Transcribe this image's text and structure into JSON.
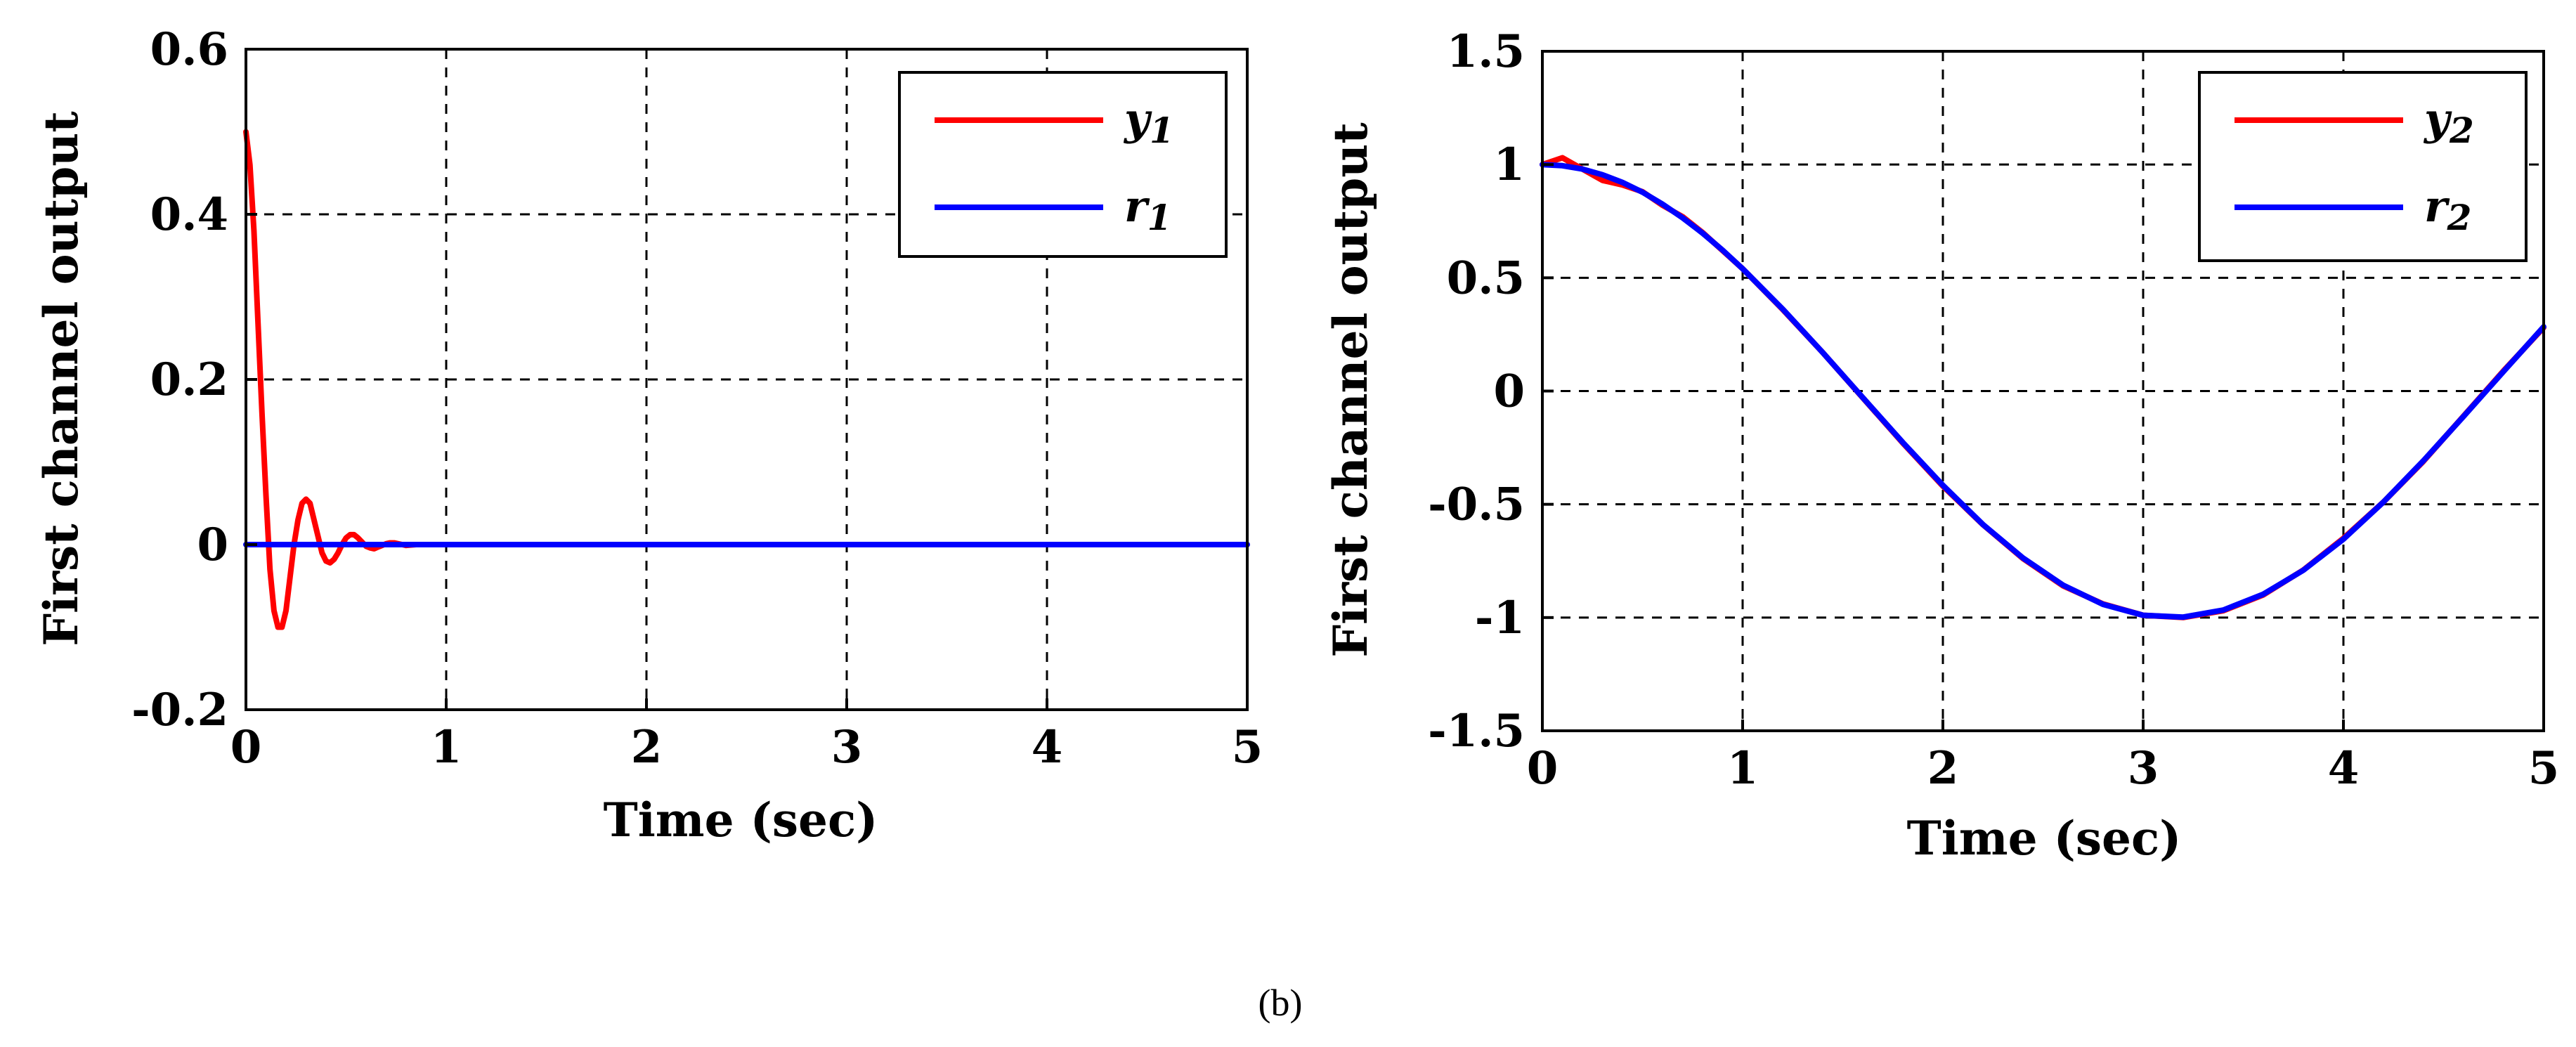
{
  "caption": "(b)",
  "chart_data": [
    {
      "type": "line",
      "xlabel": "Time (sec)",
      "ylabel": "First channel output",
      "xlim": [
        0,
        5
      ],
      "ylim": [
        -0.2,
        0.6
      ],
      "xticks": [
        0,
        1,
        2,
        3,
        4,
        5
      ],
      "yticks": [
        -0.2,
        0,
        0.2,
        0.4,
        0.6
      ],
      "xtick_labels": [
        "0",
        "1",
        "2",
        "3",
        "4",
        "5"
      ],
      "ytick_labels": [
        "-0.2",
        "0",
        "0.2",
        "0.4",
        "0.6"
      ],
      "grid": true,
      "legend_position": "top-right",
      "series": [
        {
          "name": "y1",
          "legend_base": "y",
          "legend_sub": "1",
          "color": "#ff0000",
          "x": [
            0,
            0.02,
            0.04,
            0.06,
            0.08,
            0.1,
            0.12,
            0.14,
            0.16,
            0.18,
            0.2,
            0.22,
            0.24,
            0.26,
            0.28,
            0.3,
            0.32,
            0.34,
            0.36,
            0.38,
            0.4,
            0.42,
            0.44,
            0.46,
            0.48,
            0.5,
            0.52,
            0.54,
            0.56,
            0.58,
            0.6,
            0.62,
            0.64,
            0.66,
            0.68,
            0.7,
            0.72,
            0.74,
            0.76,
            0.78,
            0.8,
            0.85,
            0.9
          ],
          "values": [
            0.5,
            0.46,
            0.38,
            0.27,
            0.16,
            0.06,
            -0.03,
            -0.08,
            -0.1,
            -0.1,
            -0.08,
            -0.04,
            0.0,
            0.03,
            0.05,
            0.055,
            0.05,
            0.03,
            0.01,
            -0.01,
            -0.02,
            -0.022,
            -0.018,
            -0.01,
            0.0,
            0.008,
            0.012,
            0.012,
            0.008,
            0.003,
            -0.002,
            -0.004,
            -0.005,
            -0.003,
            -0.001,
            0.001,
            0.002,
            0.002,
            0.001,
            0.0,
            -0.001,
            0.0,
            0.0
          ]
        },
        {
          "name": "r1",
          "legend_base": "r",
          "legend_sub": "1",
          "color": "#0000ff",
          "x": [
            0,
            5
          ],
          "values": [
            0,
            0
          ]
        }
      ]
    },
    {
      "type": "line",
      "xlabel": "Time (sec)",
      "ylabel": "First channel output",
      "xlim": [
        0,
        5
      ],
      "ylim": [
        -1.5,
        1.5
      ],
      "xticks": [
        0,
        1,
        2,
        3,
        4,
        5
      ],
      "yticks": [
        -1.5,
        -1,
        -0.5,
        0,
        0.5,
        1,
        1.5
      ],
      "xtick_labels": [
        "0",
        "1",
        "2",
        "3",
        "4",
        "5"
      ],
      "ytick_labels": [
        "-1.5",
        "-1",
        "-0.5",
        "0",
        "0.5",
        "1",
        "1.5"
      ],
      "grid": true,
      "legend_position": "top-right",
      "series": [
        {
          "name": "y2",
          "legend_base": "y",
          "legend_sub": "2",
          "color": "#ff0000",
          "x": [
            0,
            0.1,
            0.2,
            0.3,
            0.4,
            0.5,
            0.6,
            0.7,
            0.8,
            0.9,
            1.0,
            1.2,
            1.4,
            1.6,
            1.8,
            2.0,
            2.2,
            2.4,
            2.6,
            2.8,
            3.0,
            3.2,
            3.4,
            3.6,
            3.8,
            4.0,
            4.2,
            4.4,
            4.6,
            4.8,
            5.0
          ],
          "values": [
            1.0,
            1.03,
            0.98,
            0.93,
            0.91,
            0.88,
            0.82,
            0.77,
            0.7,
            0.62,
            0.54,
            0.36,
            0.17,
            -0.03,
            -0.23,
            -0.42,
            -0.59,
            -0.74,
            -0.86,
            -0.94,
            -0.99,
            -1.0,
            -0.97,
            -0.9,
            -0.79,
            -0.65,
            -0.49,
            -0.31,
            -0.11,
            0.09,
            0.28
          ]
        },
        {
          "name": "r2",
          "legend_base": "r",
          "legend_sub": "2",
          "color": "#0000ff",
          "x": [
            0,
            0.1,
            0.2,
            0.3,
            0.4,
            0.5,
            0.6,
            0.7,
            0.8,
            0.9,
            1.0,
            1.2,
            1.4,
            1.6,
            1.8,
            2.0,
            2.2,
            2.4,
            2.6,
            2.8,
            3.0,
            3.2,
            3.4,
            3.6,
            3.8,
            4.0,
            4.2,
            4.4,
            4.6,
            4.8,
            5.0
          ],
          "values": [
            1.0,
            0.995,
            0.98,
            0.955,
            0.921,
            0.878,
            0.825,
            0.765,
            0.697,
            0.622,
            0.54,
            0.362,
            0.17,
            -0.029,
            -0.227,
            -0.416,
            -0.589,
            -0.737,
            -0.857,
            -0.942,
            -0.99,
            -0.998,
            -0.967,
            -0.897,
            -0.791,
            -0.654,
            -0.49,
            -0.307,
            -0.112,
            0.087,
            0.284
          ]
        }
      ]
    }
  ]
}
